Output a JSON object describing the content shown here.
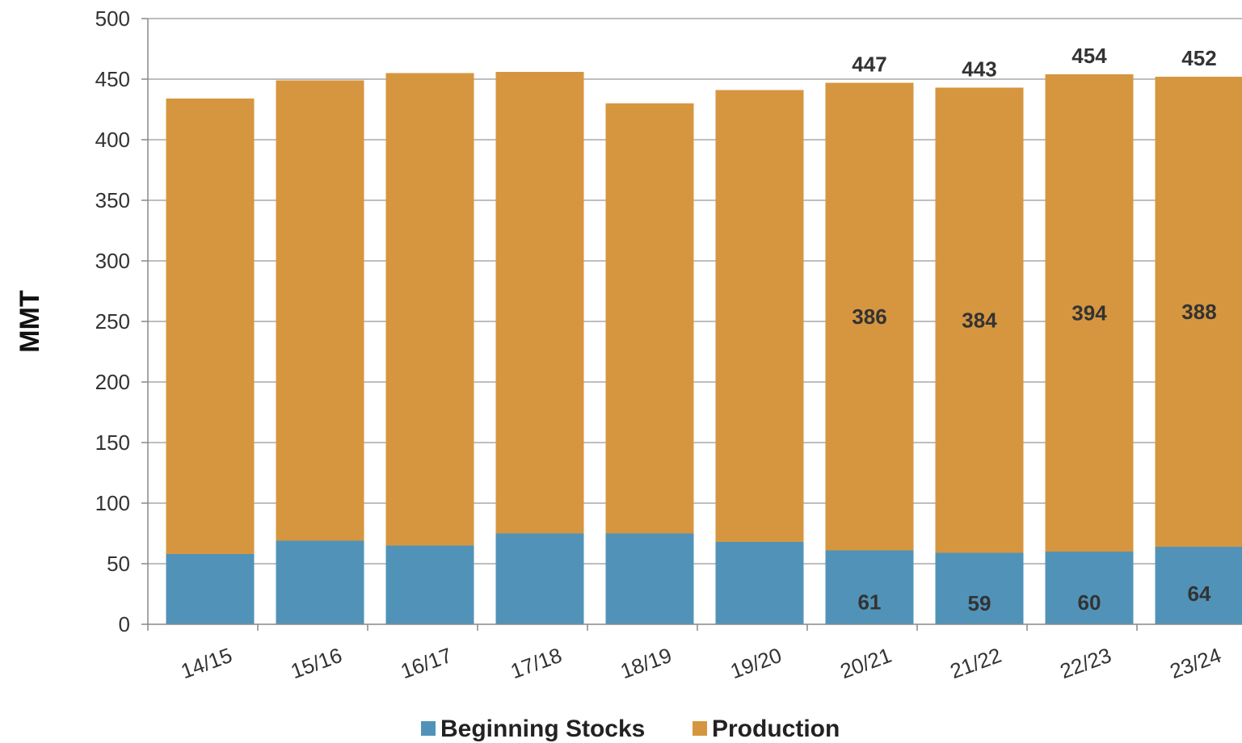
{
  "chart_data": {
    "type": "bar",
    "stacked": true,
    "categories": [
      "14/15",
      "15/16",
      "16/17",
      "17/18",
      "18/19",
      "19/20",
      "20/21",
      "21/22",
      "22/23",
      "23/24"
    ],
    "series": [
      {
        "name": "Beginning Stocks",
        "color": "#5193b8",
        "values": [
          58,
          69,
          65,
          75,
          75,
          68,
          61,
          59,
          60,
          64
        ]
      },
      {
        "name": "Production",
        "color": "#d6963f",
        "values": [
          376,
          380,
          390,
          381,
          355,
          373,
          386,
          384,
          394,
          388
        ]
      }
    ],
    "labels": {
      "stocks": {
        "20/21": "61",
        "21/22": "59",
        "22/23": "60",
        "23/24": "64"
      },
      "production": {
        "20/21": "386",
        "21/22": "384",
        "22/23": "394",
        "23/24": "388"
      },
      "totals": {
        "20/21": "447",
        "21/22": "443",
        "22/23": "454",
        "23/24": "452"
      }
    },
    "ylabel": "MMT",
    "xlabel": "",
    "title": "",
    "ylim": [
      0,
      500
    ],
    "yticks": [
      "0",
      "50",
      "100",
      "150",
      "200",
      "250",
      "300",
      "350",
      "400",
      "450",
      "500"
    ],
    "grid": true,
    "legend_position": "bottom"
  }
}
